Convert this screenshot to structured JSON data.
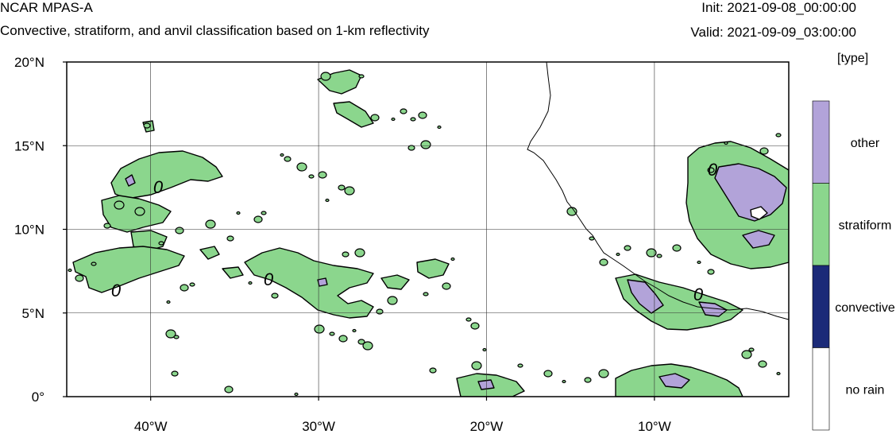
{
  "header": {
    "model": "NCAR MPAS-A",
    "subtitle": "Convective, stratiform, and anvil classification based on 1-km reflectivity",
    "init": "Init: 2021-09-08_00:00:00",
    "valid": "Valid: 2021-09-09_03:00:00"
  },
  "map": {
    "lon_range": [
      -45,
      -2
    ],
    "lat_range": [
      0,
      20
    ],
    "lat_ticks": [
      {
        "lat": 20,
        "label": "20°N"
      },
      {
        "lat": 15,
        "label": "15°N"
      },
      {
        "lat": 10,
        "label": "10°N"
      },
      {
        "lat": 5,
        "label": "5°N"
      },
      {
        "lat": 0,
        "label": "0°"
      }
    ],
    "lon_ticks": [
      {
        "lon": -40,
        "label": "40°W"
      },
      {
        "lon": -30,
        "label": "30°W"
      },
      {
        "lon": -20,
        "label": "20°W"
      },
      {
        "lon": -10,
        "label": "10°W"
      }
    ],
    "grid": true,
    "contour_labels": [
      "0",
      "0",
      "0",
      "0",
      "0"
    ]
  },
  "legend": {
    "title": "[type]",
    "items": [
      {
        "label": "other",
        "color": "#b2a3d9"
      },
      {
        "label": "stratiform",
        "color": "#8bd68d"
      },
      {
        "label": "convective",
        "color": "#1b2a78"
      },
      {
        "label": "no rain",
        "color": "#ffffff"
      }
    ]
  },
  "colors": {
    "other": "#b2a3d9",
    "stratiform": "#8bd68d",
    "outline": "#000000"
  }
}
